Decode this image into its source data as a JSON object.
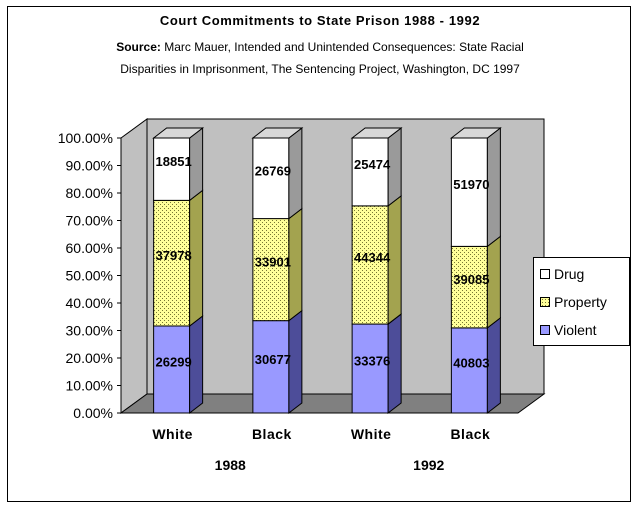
{
  "title": "Court Commitments to State Prison 1988 - 1992",
  "source": {
    "label": "Source:",
    "line1": "Marc Mauer, Intended and Unintended Consequences: State Racial",
    "line2": "Disparities in Imprisonment, The Sentencing Project, Washington, DC 1997"
  },
  "legend": {
    "items": [
      {
        "label": "Drug",
        "series": "Drug"
      },
      {
        "label": "Property",
        "series": "Property"
      },
      {
        "label": "Violent",
        "series": "Violent"
      }
    ]
  },
  "colors": {
    "Violent": "#9999ff",
    "Violent_side": "#4d4d99",
    "Property": "#ffff99",
    "Property_side": "#a3a34f",
    "Drug": "#ffffff",
    "Drug_side": "#9a9a9a",
    "plot_back": "#c0c0c0",
    "floor": "#808080"
  },
  "chart_data": {
    "type": "bar",
    "stacked": "percent",
    "three_d": true,
    "categories": [
      "White",
      "Black",
      "White",
      "Black"
    ],
    "groups": [
      {
        "label": "1988",
        "categories": [
          0,
          1
        ]
      },
      {
        "label": "1992",
        "categories": [
          2,
          3
        ]
      }
    ],
    "series": [
      {
        "name": "Violent",
        "values": [
          26299,
          30677,
          33376,
          40803
        ]
      },
      {
        "name": "Property",
        "values": [
          37978,
          33901,
          44344,
          39085
        ]
      },
      {
        "name": "Drug",
        "values": [
          18851,
          26769,
          25474,
          51970
        ]
      }
    ],
    "ylim": [
      0,
      1
    ],
    "y_ticks": [
      "0.00%",
      "10.00%",
      "20.00%",
      "30.00%",
      "40.00%",
      "50.00%",
      "60.00%",
      "70.00%",
      "80.00%",
      "90.00%",
      "100.00%"
    ],
    "grid": false,
    "legend_position": "right"
  }
}
